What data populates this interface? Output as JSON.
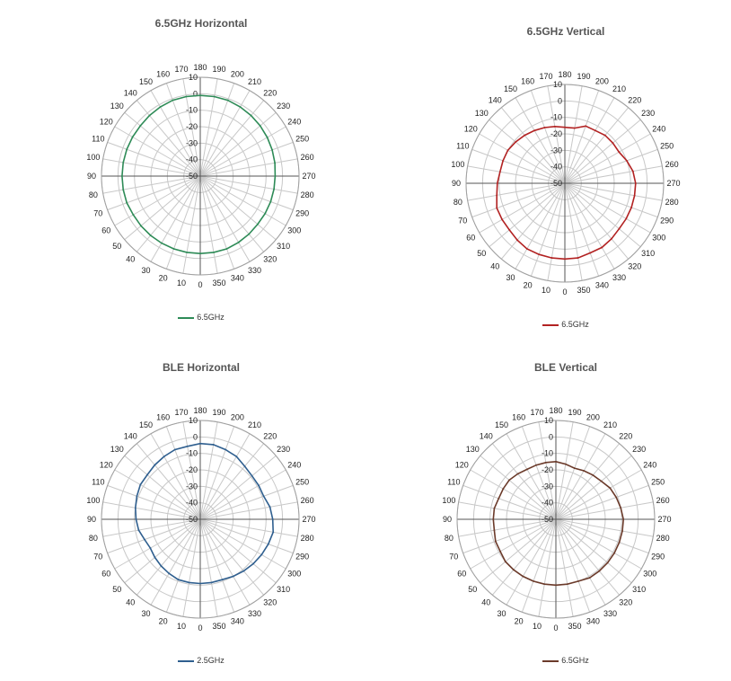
{
  "chart_data": [
    {
      "type": "radar",
      "title": "6.5GHz Horizontal",
      "angle_labels": [
        "180",
        "190",
        "200",
        "210",
        "220",
        "230",
        "240",
        "250",
        "260",
        "270",
        "280",
        "290",
        "300",
        "310",
        "320",
        "330",
        "340",
        "350",
        "0",
        "10",
        "20",
        "30",
        "40",
        "50",
        "60",
        "70",
        "80",
        "90",
        "100",
        "110",
        "120",
        "130",
        "140",
        "150",
        "160",
        "170"
      ],
      "radial_labels": [
        "10",
        "0",
        "-10",
        "-20",
        "-30",
        "-40",
        "-50"
      ],
      "rlim": [
        -50,
        10
      ],
      "legend": "bottom",
      "series": [
        {
          "name": "6.5GHz",
          "color": "#2e8b57",
          "x": [
            "180",
            "190",
            "200",
            "210",
            "220",
            "230",
            "240",
            "250",
            "260",
            "270",
            "280",
            "290",
            "300",
            "310",
            "320",
            "330",
            "340",
            "350",
            "0",
            "10",
            "20",
            "30",
            "40",
            "50",
            "60",
            "70",
            "80",
            "90",
            "100",
            "110",
            "120",
            "130",
            "140",
            "150",
            "160",
            "170"
          ],
          "values": [
            -1,
            -1,
            -1,
            -1.5,
            -2,
            -2.5,
            -3,
            -3.5,
            -4,
            -4.5,
            -4.5,
            -4.5,
            -4.5,
            -4.5,
            -4,
            -3.5,
            -3,
            -3,
            -3,
            -3,
            -3,
            -3,
            -3,
            -3,
            -3,
            -2.5,
            -2.5,
            -2.5,
            -2.5,
            -2.5,
            -2.5,
            -2.5,
            -2,
            -1.5,
            -1,
            -1
          ]
        }
      ]
    },
    {
      "type": "radar",
      "title": "6.5GHz Vertical",
      "angle_labels": [
        "180",
        "190",
        "200",
        "210",
        "220",
        "230",
        "240",
        "250",
        "260",
        "270",
        "280",
        "290",
        "300",
        "310",
        "320",
        "330",
        "340",
        "350",
        "0",
        "10",
        "20",
        "30",
        "40",
        "50",
        "60",
        "70",
        "80",
        "90",
        "100",
        "110",
        "120",
        "130",
        "140",
        "150",
        "160",
        "170"
      ],
      "radial_labels": [
        "10",
        "0",
        "-10",
        "-20",
        "-30",
        "-40",
        "-50"
      ],
      "rlim": [
        -50,
        10
      ],
      "legend": "bottom",
      "series": [
        {
          "name": "6.5GHz",
          "color": "#b22222",
          "x": [
            "180",
            "190",
            "200",
            "210",
            "220",
            "230",
            "240",
            "250",
            "260",
            "270",
            "280",
            "290",
            "300",
            "310",
            "320",
            "330",
            "340",
            "350",
            "0",
            "10",
            "20",
            "30",
            "40",
            "50",
            "60",
            "70",
            "80",
            "90",
            "100",
            "110",
            "120",
            "130",
            "140",
            "150",
            "160",
            "170"
          ],
          "values": [
            -16,
            -16,
            -13,
            -13,
            -12,
            -12,
            -12,
            -10,
            -8,
            -7,
            -7,
            -7,
            -7,
            -7,
            -6,
            -5,
            -5,
            -4,
            -4,
            -4,
            -4,
            -4,
            -5,
            -6,
            -6,
            -6,
            -8,
            -9,
            -10,
            -10,
            -10,
            -11,
            -12,
            -13,
            -14,
            -15
          ]
        }
      ]
    },
    {
      "type": "radar",
      "title": "BLE Horizontal",
      "angle_labels": [
        "180",
        "190",
        "200",
        "210",
        "220",
        "230",
        "240",
        "250",
        "260",
        "270",
        "280",
        "290",
        "300",
        "310",
        "320",
        "330",
        "340",
        "350",
        "0",
        "10",
        "20",
        "30",
        "40",
        "50",
        "60",
        "70",
        "80",
        "90",
        "100",
        "110",
        "120",
        "130",
        "140",
        "150",
        "160",
        "170"
      ],
      "radial_labels": [
        "10",
        "0",
        "-10",
        "-20",
        "-30",
        "-40",
        "-50"
      ],
      "rlim": [
        -50,
        10
      ],
      "legend": "bottom",
      "series": [
        {
          "name": "2.5GHz",
          "color": "#2f5f8f",
          "x": [
            "180",
            "190",
            "200",
            "210",
            "220",
            "230",
            "240",
            "250",
            "260",
            "270",
            "280",
            "290",
            "300",
            "310",
            "320",
            "330",
            "340",
            "350",
            "0",
            "10",
            "20",
            "30",
            "40",
            "50",
            "60",
            "70",
            "80",
            "90",
            "100",
            "110",
            "120",
            "130",
            "140",
            "150",
            "160",
            "170"
          ],
          "values": [
            -4,
            -4,
            -5,
            -6,
            -8,
            -9,
            -9,
            -9,
            -7,
            -6,
            -5,
            -6,
            -7,
            -8,
            -9,
            -10,
            -11,
            -11,
            -11,
            -11,
            -11,
            -12,
            -13,
            -14,
            -15,
            -14,
            -12,
            -11,
            -10,
            -9,
            -8,
            -8,
            -7,
            -6,
            -5,
            -5
          ]
        }
      ]
    },
    {
      "type": "radar",
      "title": "BLE Vertical",
      "angle_labels": [
        "180",
        "190",
        "200",
        "210",
        "220",
        "230",
        "240",
        "250",
        "260",
        "270",
        "280",
        "290",
        "300",
        "310",
        "320",
        "330",
        "340",
        "350",
        "0",
        "10",
        "20",
        "30",
        "40",
        "50",
        "60",
        "70",
        "80",
        "90",
        "100",
        "110",
        "120",
        "130",
        "140",
        "150",
        "160",
        "170"
      ],
      "radial_labels": [
        "10",
        "0",
        "-10",
        "-20",
        "-30",
        "-40",
        "-50"
      ],
      "rlim": [
        -50,
        10
      ],
      "legend": "bottom",
      "series": [
        {
          "name": "6.5GHz",
          "color": "#6b3a2a",
          "x": [
            "180",
            "190",
            "200",
            "210",
            "220",
            "230",
            "240",
            "250",
            "260",
            "270",
            "280",
            "290",
            "300",
            "310",
            "320",
            "330",
            "340",
            "350",
            "0",
            "10",
            "20",
            "30",
            "40",
            "50",
            "60",
            "70",
            "80",
            "90",
            "100",
            "110",
            "120",
            "130",
            "140",
            "150",
            "160",
            "170"
          ],
          "values": [
            -15,
            -16,
            -17,
            -16,
            -15,
            -14,
            -12,
            -11,
            -10,
            -9,
            -9,
            -9,
            -9,
            -9,
            -9,
            -9,
            -10,
            -10,
            -10,
            -10,
            -10,
            -10,
            -10,
            -10,
            -11,
            -11,
            -12,
            -12,
            -12,
            -13,
            -13,
            -13,
            -14,
            -15,
            -15,
            -15
          ]
        }
      ]
    }
  ]
}
